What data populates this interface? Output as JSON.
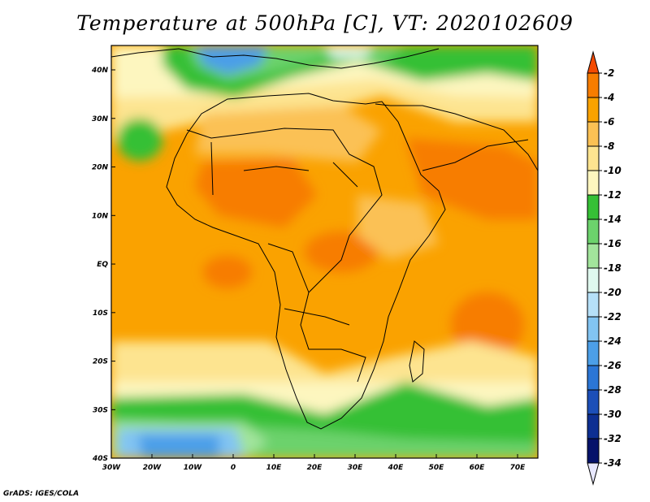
{
  "title": "Temperature at 500hPa [C], VT: 2020102609",
  "credit": "GrADS: IGES/COLA",
  "map": {
    "lon_labels": [
      "30W",
      "20W",
      "10W",
      "0",
      "10E",
      "20E",
      "30E",
      "40E",
      "50E",
      "60E",
      "70E"
    ],
    "lat_labels": [
      "40N",
      "30N",
      "20N",
      "10N",
      "EQ",
      "10S",
      "20S",
      "30S",
      "40S"
    ]
  },
  "colorbar": {
    "labels": [
      "-2",
      "-4",
      "-6",
      "-8",
      "-10",
      "-12",
      "-14",
      "-16",
      "-18",
      "-20",
      "-22",
      "-24",
      "-26",
      "-28",
      "-30",
      "-32",
      "-34"
    ],
    "colors": [
      "#f44a00",
      "#f77d00",
      "#faa200",
      "#fbc154",
      "#fde490",
      "#fdf6bf",
      "#36c036",
      "#6cd26c",
      "#a2e49c",
      "#dff8ee",
      "#b6e0f8",
      "#82c4f2",
      "#4c9fe8",
      "#2b76d6",
      "#1c4fb8",
      "#0d2f92",
      "#06126a",
      "#e8e8ff"
    ]
  }
}
